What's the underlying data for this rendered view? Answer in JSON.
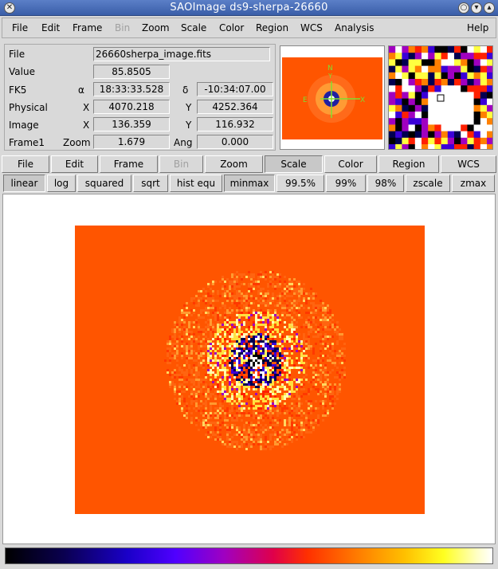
{
  "window": {
    "title": "SAOImage ds9-sherpa-26660"
  },
  "menubar": {
    "items": [
      {
        "label": "File",
        "disabled": false
      },
      {
        "label": "Edit",
        "disabled": false
      },
      {
        "label": "Frame",
        "disabled": false
      },
      {
        "label": "Bin",
        "disabled": true
      },
      {
        "label": "Zoom",
        "disabled": false
      },
      {
        "label": "Scale",
        "disabled": false
      },
      {
        "label": "Color",
        "disabled": false
      },
      {
        "label": "Region",
        "disabled": false
      },
      {
        "label": "WCS",
        "disabled": false
      },
      {
        "label": "Analysis",
        "disabled": false
      }
    ],
    "help": "Help"
  },
  "info": {
    "file_label": "File",
    "file_value": "26660sherpa_image.fits",
    "value_label": "Value",
    "value_value": "85.8505",
    "fk5_label": "FK5",
    "alpha_label": "α",
    "alpha_value": "18:33:33.528",
    "delta_label": "δ",
    "delta_value": "-10:34:07.00",
    "physical_label": "Physical",
    "physical_x_label": "X",
    "physical_x": "4070.218",
    "physical_y_label": "Y",
    "physical_y": "4252.364",
    "image_label": "Image",
    "image_x_label": "X",
    "image_x": "136.359",
    "image_y_label": "Y",
    "image_y": "116.932",
    "frame_label": "Frame1",
    "zoom_label": "Zoom",
    "zoom_value": "1.679",
    "ang_label": "Ang",
    "ang_value": "0.000"
  },
  "panner": {
    "north": "N",
    "east": "E",
    "x_axis": "X",
    "y_axis": "Y"
  },
  "buttonbar": [
    {
      "label": "File"
    },
    {
      "label": "Edit"
    },
    {
      "label": "Frame"
    },
    {
      "label": "Bin"
    },
    {
      "label": "Zoom"
    },
    {
      "label": "Scale"
    },
    {
      "label": "Color"
    },
    {
      "label": "Region"
    },
    {
      "label": "WCS"
    }
  ],
  "scalebar": [
    {
      "label": "linear"
    },
    {
      "label": "log"
    },
    {
      "label": "squared"
    },
    {
      "label": "sqrt"
    },
    {
      "label": "hist equ"
    },
    {
      "label": "minmax"
    },
    {
      "label": "99.5%"
    },
    {
      "label": "99%"
    },
    {
      "label": "98%"
    },
    {
      "label": "zscale"
    },
    {
      "label": "zmax"
    }
  ],
  "colors": {
    "image_background": "#ff5500",
    "titlebar": "#3a5ea8"
  }
}
